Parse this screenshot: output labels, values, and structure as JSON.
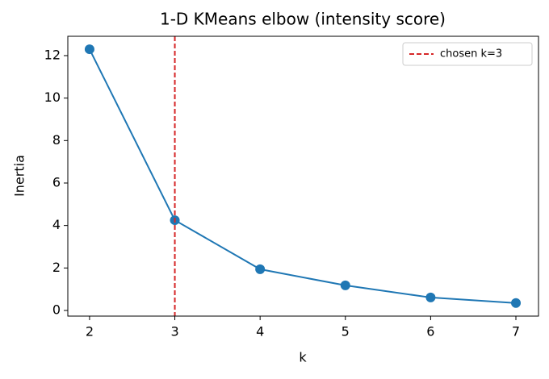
{
  "chart_data": {
    "type": "line",
    "title": "1-D KMeans elbow (intensity score)",
    "x_label": "k",
    "y_label": "Inertia",
    "x": [
      2,
      3,
      4,
      5,
      6,
      7
    ],
    "series": [
      {
        "color": "#1f77b4",
        "values": [
          12.3,
          4.25,
          1.94,
          1.18,
          0.61,
          0.35
        ]
      }
    ],
    "vline": {
      "x": 3,
      "label": "chosen k=3",
      "color": "#d62728"
    },
    "xlim": [
      1.745,
      7.265
    ],
    "ylim": [
      -0.266,
      12.91
    ],
    "xticks": [
      2,
      3,
      4,
      5,
      6,
      7
    ],
    "yticks": [
      0,
      2,
      4,
      6,
      8,
      10,
      12
    ],
    "legend": "upper right",
    "grid": false
  }
}
